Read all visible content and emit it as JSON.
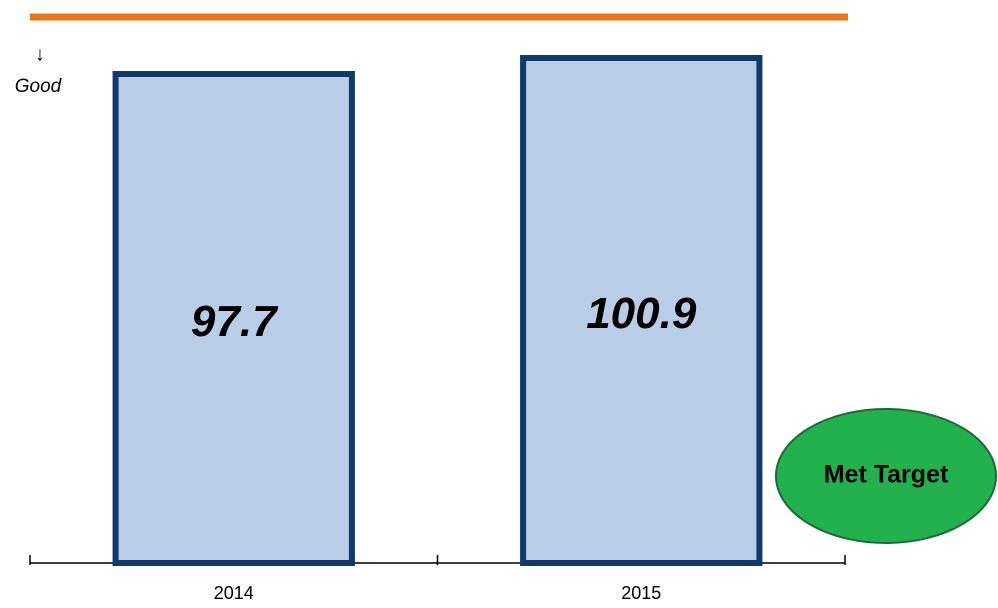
{
  "chart_data": {
    "type": "bar",
    "categories": [
      "2014",
      "2015"
    ],
    "values": [
      97.7,
      100.9
    ],
    "color": "#b9cde6",
    "edge_color": "#0e3a6e",
    "annotation_arrow": "↓",
    "annotation": "Good",
    "badge": "Met Target",
    "badge_color": "#22b14c"
  }
}
